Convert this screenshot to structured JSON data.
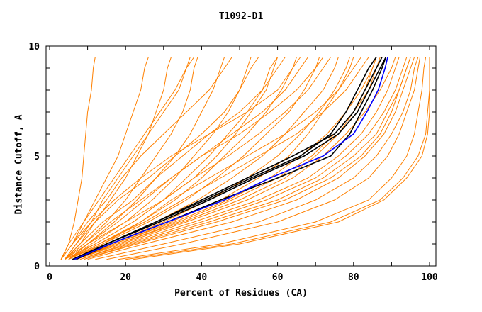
{
  "chart_data": {
    "type": "line",
    "title": "T1092-D1",
    "xlabel": "Percent of Residues (CA)",
    "ylabel": "Distance Cutoff, A",
    "xlim": [
      0,
      100
    ],
    "ylim": [
      0,
      10
    ],
    "x_ticks": [
      "0",
      "20",
      "40",
      "60",
      "80",
      "100"
    ],
    "y_ticks": [
      "0",
      "5",
      "10"
    ],
    "grid": false,
    "cutoffs": [
      0.3,
      1,
      2,
      3,
      4,
      5,
      6,
      7,
      8,
      9,
      9.5
    ],
    "colors": {
      "models": "#ff8000",
      "highlight": "#0000ff",
      "group": "#000000"
    },
    "series_orange": [
      [
        3,
        5,
        6.5,
        7.5,
        8.5,
        9,
        9.5,
        10,
        11,
        11.5,
        12
      ],
      [
        3,
        6,
        9,
        12,
        15,
        18,
        20,
        22,
        24,
        25,
        26
      ],
      [
        4,
        8,
        12,
        16,
        20,
        23,
        26,
        28,
        30,
        31,
        32
      ],
      [
        4,
        9,
        15,
        20,
        24,
        28,
        32,
        35,
        37,
        38,
        39
      ],
      [
        5,
        10,
        17,
        23,
        28,
        33,
        37,
        40,
        43,
        45,
        46
      ],
      [
        5,
        11,
        20,
        27,
        33,
        38,
        43,
        47,
        50,
        52,
        53
      ],
      [
        4,
        12,
        22,
        30,
        38,
        44,
        49,
        53,
        57,
        59,
        60
      ],
      [
        5,
        13,
        24,
        33,
        40,
        46,
        52,
        57,
        61,
        64,
        65
      ],
      [
        5,
        14,
        26,
        36,
        44,
        51,
        57,
        63,
        67,
        70,
        71
      ],
      [
        6,
        15,
        28,
        39,
        48,
        56,
        62,
        67,
        72,
        75,
        76
      ],
      [
        4,
        7,
        11,
        14,
        18,
        22,
        26,
        30,
        34,
        36,
        37
      ],
      [
        3,
        6,
        10,
        15,
        19,
        24,
        30,
        36,
        42,
        46,
        48
      ],
      [
        4,
        8,
        14,
        22,
        28,
        35,
        42,
        50,
        56,
        60,
        62
      ],
      [
        5,
        10,
        18,
        25,
        32,
        40,
        50,
        58,
        65,
        70,
        72
      ],
      [
        6,
        14,
        24,
        32,
        42,
        52,
        62,
        70,
        76,
        80,
        82
      ],
      [
        6,
        17,
        32,
        45,
        55,
        63,
        68,
        72,
        76,
        79,
        80
      ],
      [
        7,
        18,
        35,
        50,
        62,
        70,
        76,
        80,
        84,
        86,
        87
      ],
      [
        8,
        20,
        38,
        55,
        68,
        76,
        82,
        86,
        89,
        91,
        92
      ],
      [
        9,
        22,
        42,
        60,
        72,
        80,
        86,
        89,
        92,
        94,
        95
      ],
      [
        10,
        25,
        48,
        65,
        76,
        83,
        88,
        91,
        93,
        95,
        96
      ],
      [
        12,
        30,
        55,
        70,
        80,
        86,
        90,
        93,
        95,
        96,
        97
      ],
      [
        15,
        35,
        60,
        75,
        84,
        89,
        92,
        94,
        96,
        97,
        97.5
      ],
      [
        18,
        45,
        70,
        84,
        90,
        94,
        96,
        97,
        98,
        98.5,
        99
      ],
      [
        20,
        48,
        74,
        87,
        93,
        97,
        99,
        99.5,
        100,
        100,
        100
      ],
      [
        22,
        50,
        76,
        88,
        94,
        98,
        99.5,
        100,
        100,
        100,
        100
      ],
      [
        7,
        19,
        36,
        52,
        64,
        72,
        78,
        83,
        87,
        90,
        91
      ],
      [
        8,
        21,
        40,
        57,
        70,
        78,
        84,
        88,
        91,
        93,
        94
      ],
      [
        6,
        16,
        30,
        42,
        52,
        60,
        66,
        71,
        75,
        78,
        79
      ],
      [
        5,
        13,
        25,
        35,
        45,
        55,
        65,
        72,
        78,
        82,
        84
      ],
      [
        4,
        9,
        16,
        24,
        32,
        40,
        48,
        56,
        62,
        66,
        68
      ],
      [
        3,
        5,
        9,
        13,
        17,
        21,
        25,
        29,
        33,
        36,
        38
      ],
      [
        4,
        7,
        12,
        18,
        26,
        33,
        40,
        46,
        50,
        53,
        55
      ],
      [
        7,
        17,
        33,
        47,
        58,
        66,
        73,
        78,
        82,
        85,
        86
      ],
      [
        9,
        23,
        44,
        62,
        74,
        82,
        87,
        90,
        92,
        94,
        95
      ],
      [
        4,
        10,
        20,
        30,
        38,
        47,
        55,
        62,
        68,
        72,
        74
      ],
      [
        5,
        12,
        22,
        30,
        36,
        42,
        47,
        52,
        56,
        58,
        60
      ],
      [
        3,
        6,
        11,
        17,
        24,
        32,
        42,
        52,
        60,
        64,
        66
      ],
      [
        6,
        18,
        34,
        48,
        60,
        69,
        75,
        80,
        83,
        85,
        86
      ]
    ],
    "series_black": [
      [
        6.5,
        15,
        28,
        40,
        52,
        64,
        75,
        80,
        83,
        86,
        87.5
      ],
      [
        7,
        15,
        29,
        42,
        54,
        67,
        76,
        81,
        84,
        87,
        88.5
      ],
      [
        7,
        16,
        31,
        45,
        60,
        74,
        79,
        82,
        85,
        87.5,
        88.5
      ],
      [
        6,
        15,
        28,
        41,
        53,
        66,
        74,
        78,
        81,
        84,
        86
      ]
    ],
    "series_blue": [
      6.5,
      16,
      31,
      46,
      58,
      72,
      80,
      83.5,
      86.5,
      88.3,
      89
    ]
  }
}
